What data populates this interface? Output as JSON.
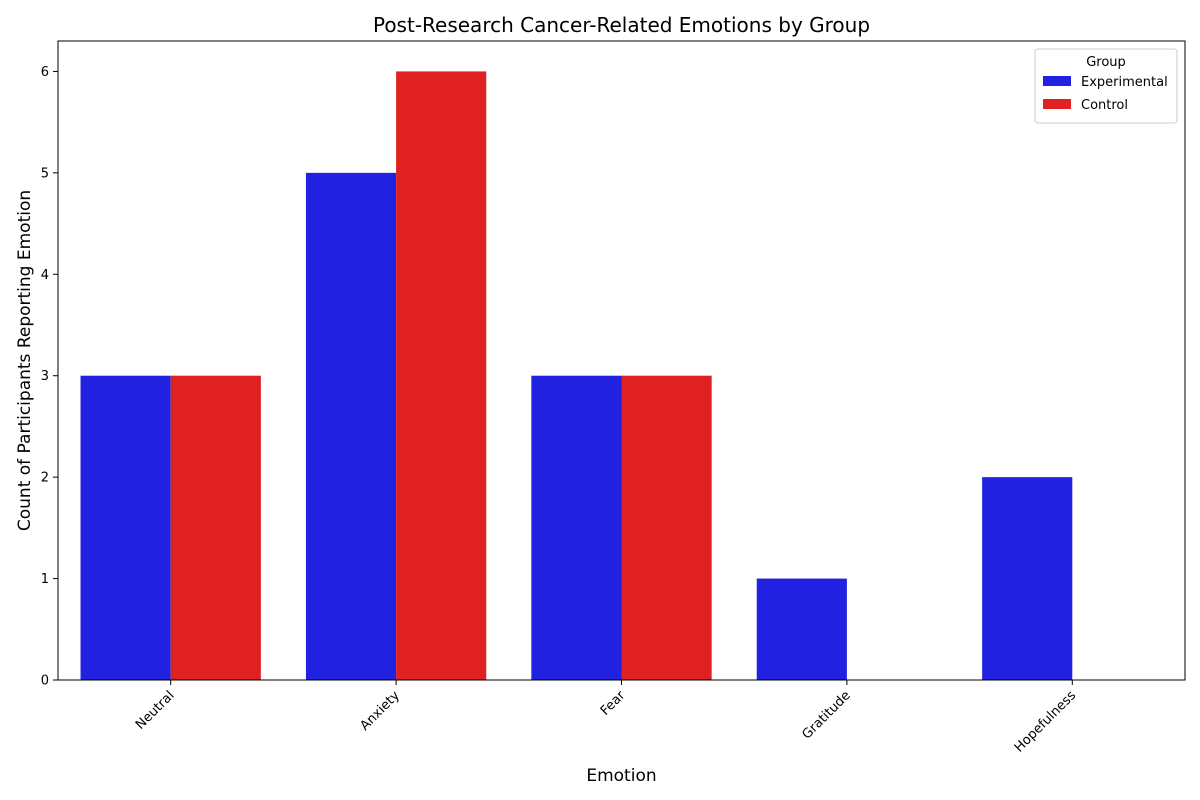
{
  "chart_data": {
    "type": "bar",
    "title": "Post-Research Cancer-Related Emotions by Group",
    "xlabel": "Emotion",
    "ylabel": "Count of Participants Reporting Emotion",
    "categories": [
      "Neutral",
      "Anxiety",
      "Fear",
      "Gratitude",
      "Hopefulness"
    ],
    "series": [
      {
        "name": "Experimental",
        "values": [
          3,
          5,
          3,
          1,
          2
        ],
        "color": "#2121e1"
      },
      {
        "name": "Control",
        "values": [
          3,
          6,
          3,
          0,
          0
        ],
        "color": "#df2121"
      }
    ],
    "ylim": [
      0,
      6.3
    ],
    "yticks": [
      0,
      1,
      2,
      3,
      4,
      5,
      6
    ],
    "legend": {
      "title": "Group",
      "placement": "top-right"
    },
    "grid": false
  }
}
